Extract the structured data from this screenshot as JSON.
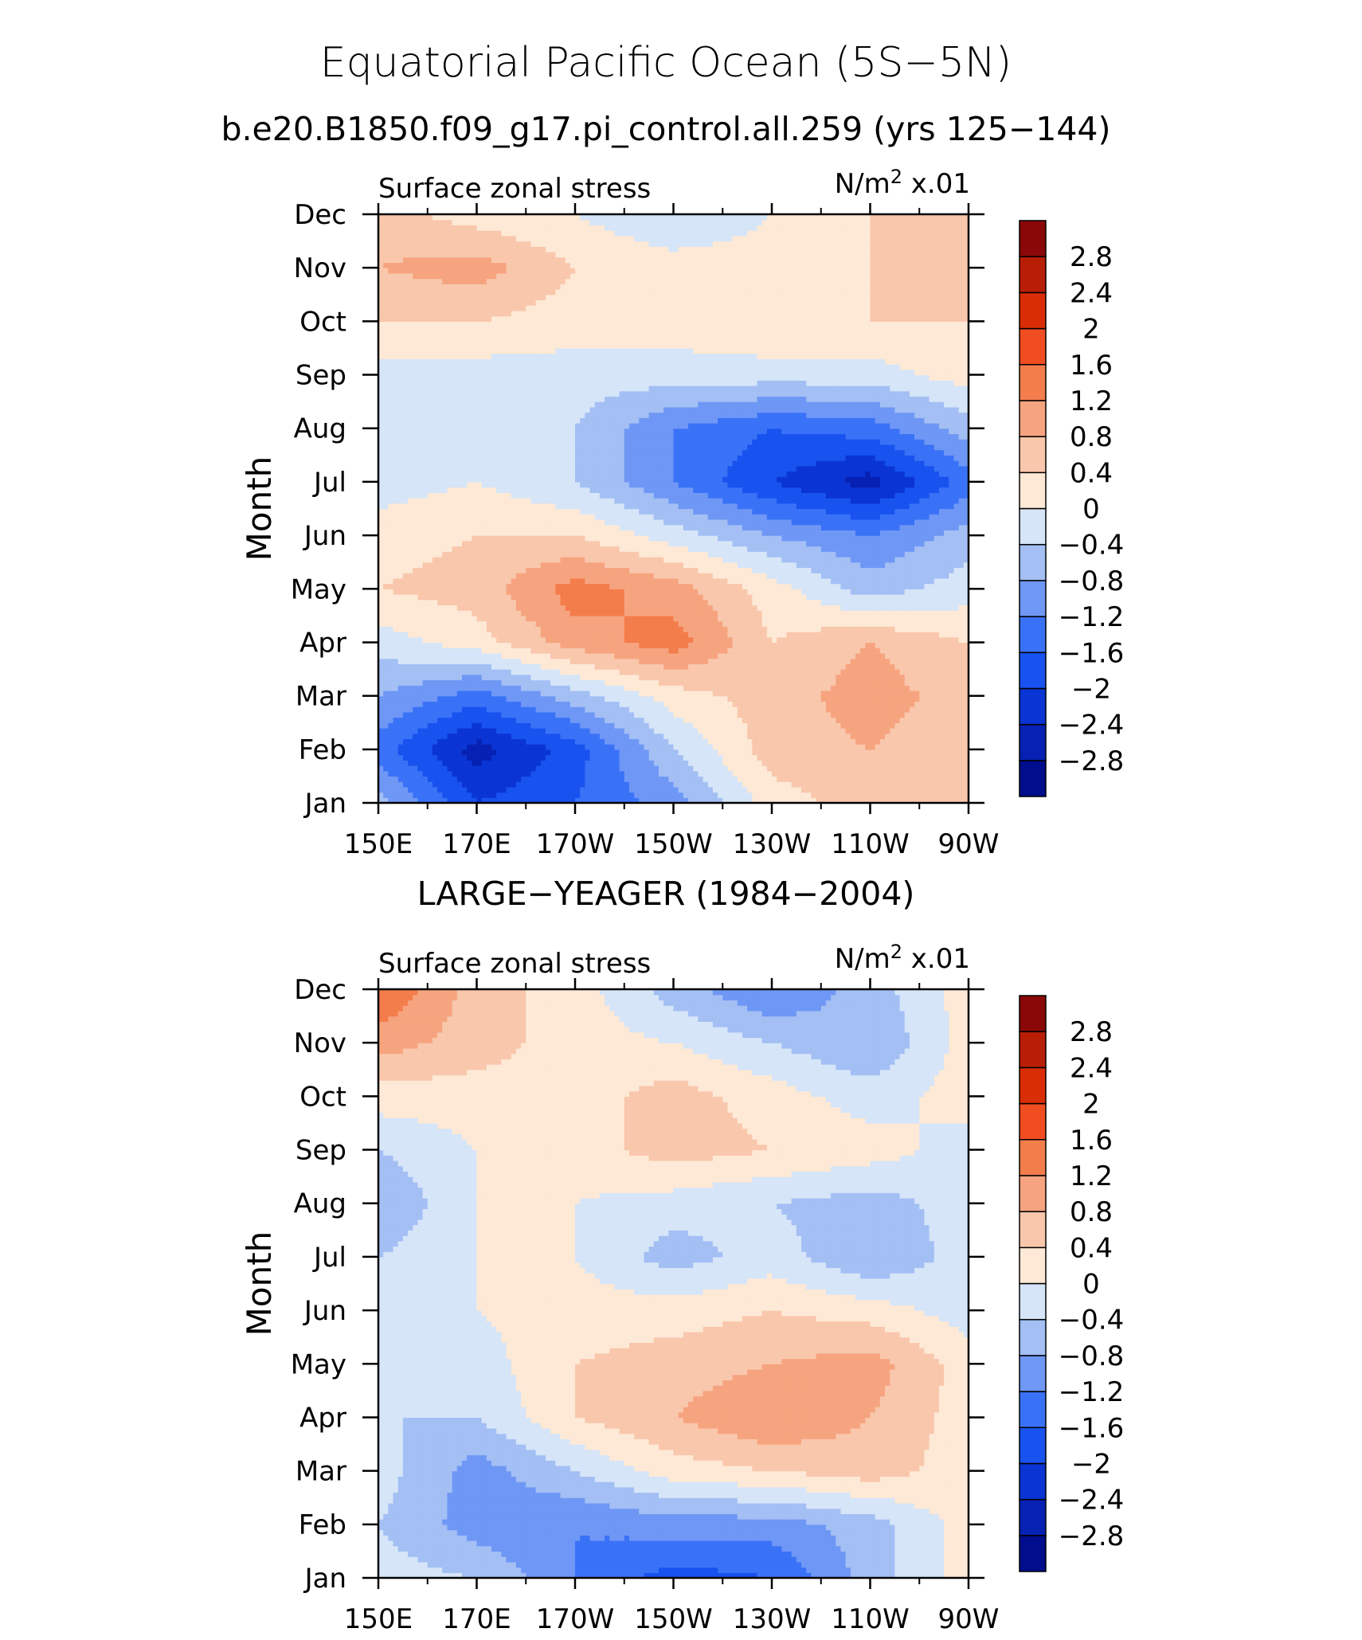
{
  "title": "Equatorial Pacific Ocean (5S−5N)",
  "subtitle": "b.e20.B1850.f09_g17.pi_control.all.259 (yrs 125−144)",
  "chart_data": [
    {
      "type": "heatmap",
      "title": "",
      "left_label": "Surface zonal stress",
      "right_label_base": "N/m",
      "right_label_sup": "2",
      "right_label_suffix": " x.01",
      "ylabel": "Month",
      "xlabel": "",
      "x_ticks": [
        "150E",
        "170E",
        "170W",
        "150W",
        "130W",
        "110W",
        "90W"
      ],
      "x_tick_values": [
        150,
        170,
        190,
        210,
        230,
        250,
        270
      ],
      "y_ticks": [
        "Jan",
        "Feb",
        "Mar",
        "Apr",
        "May",
        "Jun",
        "Jul",
        "Aug",
        "Sep",
        "Oct",
        "Nov",
        "Dec"
      ],
      "xlim": [
        150,
        270
      ],
      "ylim": [
        1,
        12
      ],
      "x_grid": [
        150,
        170,
        190,
        210,
        230,
        250,
        270
      ],
      "y_grid": [
        1,
        2,
        3,
        4,
        5,
        6,
        7,
        8,
        9,
        10,
        11,
        12
      ],
      "values": [
        [
          -0.6,
          -2.0,
          -1.6,
          -1.0,
          0.2,
          0.6,
          0.4
        ],
        [
          -1.4,
          -2.6,
          -1.8,
          -0.4,
          0.6,
          0.8,
          0.5
        ],
        [
          -0.8,
          -1.4,
          -0.6,
          0.2,
          0.6,
          1.0,
          0.6
        ],
        [
          -0.2,
          0.2,
          1.0,
          1.4,
          0.4,
          0.8,
          0.4
        ],
        [
          0.4,
          0.6,
          1.4,
          1.0,
          0.2,
          -0.6,
          -0.2
        ],
        [
          0.2,
          0.4,
          0.4,
          -0.2,
          -0.8,
          -1.2,
          -0.6
        ],
        [
          -0.2,
          0.0,
          -0.4,
          -1.2,
          -2.0,
          -2.6,
          -1.4
        ],
        [
          -0.4,
          -0.2,
          -0.4,
          -1.2,
          -1.6,
          -1.4,
          -0.6
        ],
        [
          -0.2,
          -0.2,
          -0.2,
          -0.2,
          -0.2,
          -0.2,
          0.2
        ],
        [
          0.4,
          0.4,
          0.2,
          0.2,
          0.4,
          0.4,
          0.4
        ],
        [
          0.8,
          1.0,
          0.4,
          0.2,
          0.2,
          0.4,
          0.4
        ],
        [
          0.6,
          0.2,
          0.0,
          -0.4,
          0.0,
          0.4,
          0.4
        ]
      ]
    },
    {
      "type": "heatmap",
      "title": "LARGE−YEAGER (1984−2004)",
      "left_label": "Surface zonal stress",
      "right_label_base": "N/m",
      "right_label_sup": "2",
      "right_label_suffix": " x.01",
      "ylabel": "Month",
      "xlabel": "",
      "x_ticks": [
        "150E",
        "170E",
        "170W",
        "150W",
        "130W",
        "110W",
        "90W"
      ],
      "x_tick_values": [
        150,
        170,
        190,
        210,
        230,
        250,
        270
      ],
      "y_ticks": [
        "Jan",
        "Feb",
        "Mar",
        "Apr",
        "May",
        "Jun",
        "Jul",
        "Aug",
        "Sep",
        "Oct",
        "Nov",
        "Dec"
      ],
      "xlim": [
        150,
        270
      ],
      "ylim": [
        1,
        12
      ],
      "x_grid": [
        150,
        170,
        190,
        210,
        230,
        250,
        270
      ],
      "y_grid": [
        1,
        2,
        3,
        4,
        5,
        6,
        7,
        8,
        9,
        10,
        11,
        12
      ],
      "values": [
        [
          -0.2,
          -0.4,
          -1.2,
          -1.8,
          -1.6,
          -0.6,
          0.2
        ],
        [
          -0.4,
          -1.0,
          -1.2,
          -1.0,
          -1.0,
          -0.6,
          0.2
        ],
        [
          -0.2,
          -1.0,
          -0.4,
          0.2,
          0.4,
          0.6,
          0.2
        ],
        [
          -0.4,
          -0.4,
          0.4,
          0.8,
          1.2,
          0.8,
          0.2
        ],
        [
          -0.2,
          -0.2,
          0.4,
          0.6,
          0.8,
          1.0,
          0.2
        ],
        [
          -0.2,
          0.0,
          0.2,
          0.2,
          0.4,
          0.2,
          -0.2
        ],
        [
          -0.4,
          0.0,
          0.0,
          -0.6,
          -0.2,
          -0.8,
          -0.2
        ],
        [
          -0.8,
          0.0,
          0.0,
          -0.2,
          -0.4,
          -0.6,
          -0.2
        ],
        [
          -0.4,
          0.0,
          0.2,
          0.6,
          0.4,
          0.2,
          -0.2
        ],
        [
          0.2,
          0.2,
          0.2,
          0.6,
          0.2,
          -0.2,
          0.2
        ],
        [
          1.0,
          0.6,
          0.2,
          0.0,
          -0.4,
          -0.8,
          0.2
        ],
        [
          1.6,
          0.6,
          0.2,
          -0.6,
          -1.2,
          -0.6,
          0.2
        ]
      ]
    }
  ],
  "colorbar": {
    "levels": [
      -3.2,
      -2.8,
      -2.4,
      -2.0,
      -1.6,
      -1.2,
      -0.8,
      -0.4,
      0.0,
      0.4,
      0.8,
      1.2,
      1.6,
      2.0,
      2.4,
      2.8,
      3.2
    ],
    "tick_labels": [
      "−2.8",
      "−2.4",
      "−2",
      "−1.6",
      "−1.2",
      "−0.8",
      "−0.4",
      "0",
      "0.4",
      "0.8",
      "1.2",
      "1.6",
      "2",
      "2.4",
      "2.8"
    ],
    "colors": [
      "#000d8c",
      "#0621b3",
      "#0a35d4",
      "#1852ef",
      "#3a72f7",
      "#6f97f5",
      "#a3bff4",
      "#d6e5f8",
      "#fde9d6",
      "#f9c7ac",
      "#f6a47f",
      "#f47d4c",
      "#f04d21",
      "#d92d05",
      "#b81e06",
      "#8a0808"
    ]
  }
}
